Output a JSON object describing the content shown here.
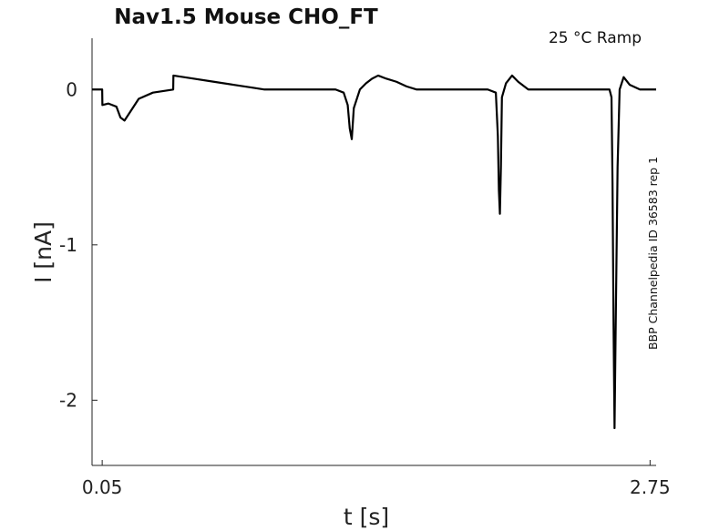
{
  "chart_data": {
    "type": "line",
    "title": "Nav1.5  Mouse  CHO_FT",
    "annotation": "25 °C  Ramp",
    "side_label": "BBP Channelpedia ID 36583 rep 1",
    "xlabel": "t [s]",
    "ylabel": "I [nA]",
    "x_ticks": [
      "0.05",
      "2.75"
    ],
    "y_ticks": [
      "0",
      "-1",
      "-2"
    ],
    "x_tick_values": [
      0.05,
      2.75
    ],
    "y_tick_values": [
      0,
      -1,
      -2
    ],
    "xlim": [
      0.0,
      2.78
    ],
    "ylim": [
      -2.42,
      0.33
    ],
    "grid": false,
    "series": [
      {
        "values": [
          [
            0.0,
            0.0
          ],
          [
            0.05,
            0.0
          ],
          [
            0.051,
            -0.1
          ],
          [
            0.08,
            -0.09
          ],
          [
            0.12,
            -0.11
          ],
          [
            0.14,
            -0.18
          ],
          [
            0.16,
            -0.2
          ],
          [
            0.185,
            -0.15
          ],
          [
            0.23,
            -0.06
          ],
          [
            0.3,
            -0.02
          ],
          [
            0.4,
            0.0
          ],
          [
            0.401,
            0.09
          ],
          [
            0.5,
            0.07
          ],
          [
            0.6,
            0.05
          ],
          [
            0.7,
            0.03
          ],
          [
            0.8,
            0.01
          ],
          [
            0.85,
            0.0
          ],
          [
            1.2,
            0.0
          ],
          [
            1.24,
            -0.02
          ],
          [
            1.26,
            -0.1
          ],
          [
            1.27,
            -0.25
          ],
          [
            1.28,
            -0.32
          ],
          [
            1.29,
            -0.12
          ],
          [
            1.32,
            0.0
          ],
          [
            1.35,
            0.04
          ],
          [
            1.38,
            0.07
          ],
          [
            1.41,
            0.09
          ],
          [
            1.45,
            0.07
          ],
          [
            1.5,
            0.05
          ],
          [
            1.55,
            0.02
          ],
          [
            1.6,
            0.0
          ],
          [
            1.95,
            0.0
          ],
          [
            1.99,
            -0.02
          ],
          [
            2.0,
            -0.3
          ],
          [
            2.005,
            -0.65
          ],
          [
            2.01,
            -0.8
          ],
          [
            2.015,
            -0.5
          ],
          [
            2.02,
            -0.05
          ],
          [
            2.04,
            0.04
          ],
          [
            2.07,
            0.09
          ],
          [
            2.1,
            0.05
          ],
          [
            2.15,
            0.0
          ],
          [
            2.55,
            0.0
          ],
          [
            2.56,
            -0.05
          ],
          [
            2.565,
            -0.6
          ],
          [
            2.57,
            -1.5
          ],
          [
            2.575,
            -2.18
          ],
          [
            2.58,
            -1.6
          ],
          [
            2.59,
            -0.5
          ],
          [
            2.6,
            0.0
          ],
          [
            2.62,
            0.08
          ],
          [
            2.65,
            0.03
          ],
          [
            2.7,
            0.0
          ],
          [
            2.78,
            0.0
          ]
        ]
      }
    ]
  }
}
